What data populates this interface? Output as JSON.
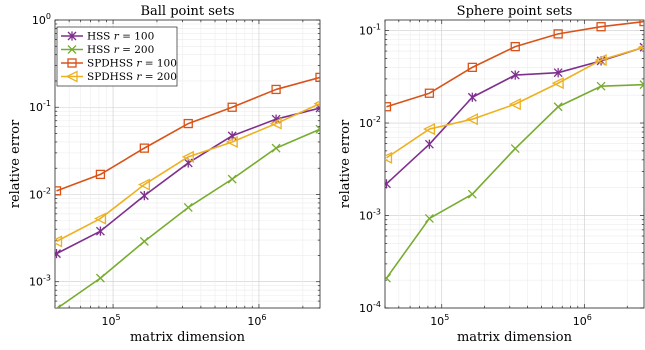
{
  "colors": {
    "hss100": "#7e2f8e",
    "hss200": "#77ac30",
    "spd100": "#d95319",
    "spd200": "#edb120"
  },
  "chart_data": [
    {
      "type": "line",
      "title": "Ball point sets",
      "xlabel": "matrix dimension",
      "ylabel": "relative error",
      "xscale": "log",
      "yscale": "log",
      "xlim": [
        40000,
        2621440
      ],
      "ylim": [
        0.0005,
        1
      ],
      "xticks": [
        {
          "value": 100000,
          "base": "10",
          "exp": "5"
        },
        {
          "value": 1000000,
          "base": "10",
          "exp": "6"
        }
      ],
      "yticks": [
        {
          "value": 0.001,
          "base": "10",
          "exp": "-3"
        },
        {
          "value": 0.01,
          "base": "10",
          "exp": "-2"
        },
        {
          "value": 0.1,
          "base": "10",
          "exp": "-1"
        },
        {
          "value": 1,
          "base": "10",
          "exp": "0"
        }
      ],
      "grid": true,
      "legend": "top-left",
      "x": [
        40960,
        81920,
        163840,
        327680,
        655360,
        1310720,
        2621440
      ],
      "series": [
        {
          "name": "HSS r = 100",
          "label_main": "HSS ",
          "label_var": "r",
          "label_rest": " = 100",
          "color_key": "hss100",
          "marker": "asterisk",
          "values": [
            0.0021,
            0.0038,
            0.0097,
            0.023,
            0.047,
            0.073,
            0.098
          ]
        },
        {
          "name": "HSS r = 200",
          "label_main": "HSS ",
          "label_var": "r",
          "label_rest": " = 200",
          "color_key": "hss200",
          "marker": "x",
          "values": [
            0.00049,
            0.0011,
            0.0029,
            0.0071,
            0.015,
            0.034,
            0.056
          ]
        },
        {
          "name": "SPDHSS r = 100",
          "label_main": "SPDHSS ",
          "label_var": "r",
          "label_rest": " = 100",
          "color_key": "spd100",
          "marker": "square",
          "values": [
            0.011,
            0.017,
            0.034,
            0.065,
            0.1,
            0.16,
            0.22
          ]
        },
        {
          "name": "SPDHSS r = 200",
          "label_main": "SPDHSS ",
          "label_var": "r",
          "label_rest": " = 200",
          "color_key": "spd200",
          "marker": "triangle-left",
          "values": [
            0.0029,
            0.0053,
            0.013,
            0.027,
            0.04,
            0.065,
            0.11
          ]
        }
      ]
    },
    {
      "type": "line",
      "title": "Sphere point sets",
      "xlabel": "matrix dimension",
      "ylabel": "relative error",
      "xscale": "log",
      "yscale": "log",
      "xlim": [
        40000,
        2621440
      ],
      "ylim": [
        0.0001,
        0.13
      ],
      "xticks": [
        {
          "value": 100000,
          "base": "10",
          "exp": "5"
        },
        {
          "value": 1000000,
          "base": "10",
          "exp": "6"
        }
      ],
      "yticks": [
        {
          "value": 0.0001,
          "base": "10",
          "exp": "-4"
        },
        {
          "value": 0.001,
          "base": "10",
          "exp": "-3"
        },
        {
          "value": 0.01,
          "base": "10",
          "exp": "-2"
        },
        {
          "value": 0.1,
          "base": "10",
          "exp": "-1"
        }
      ],
      "grid": true,
      "legend": "none",
      "x": [
        40960,
        81920,
        163840,
        327680,
        655360,
        1310720,
        2621440
      ],
      "series": [
        {
          "name": "HSS r = 100",
          "color_key": "hss100",
          "marker": "asterisk",
          "values": [
            0.0022,
            0.0059,
            0.019,
            0.033,
            0.035,
            0.047,
            0.066
          ]
        },
        {
          "name": "HSS r = 200",
          "color_key": "hss200",
          "marker": "x",
          "values": [
            0.00021,
            0.00093,
            0.0017,
            0.0053,
            0.015,
            0.025,
            0.026
          ]
        },
        {
          "name": "SPDHSS r = 100",
          "color_key": "spd100",
          "marker": "square",
          "values": [
            0.015,
            0.021,
            0.04,
            0.067,
            0.092,
            0.11,
            0.125
          ]
        },
        {
          "name": "SPDHSS r = 200",
          "color_key": "spd200",
          "marker": "triangle-left",
          "values": [
            0.0042,
            0.0086,
            0.011,
            0.016,
            0.027,
            0.048,
            0.066
          ]
        }
      ]
    }
  ]
}
